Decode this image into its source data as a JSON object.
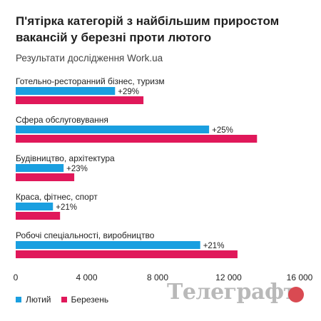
{
  "header": {
    "title": "П'ятірка категорій з найбільшим приростом вакансій у березні проти лютого",
    "subtitle": "Результати дослідження Work.ua"
  },
  "legend": [
    {
      "label": "Лютий",
      "color": "#1a9fe0"
    },
    {
      "label": "Березень",
      "color": "#e0185a"
    }
  ],
  "watermark": {
    "text": "Телеграфъ"
  },
  "chart_data": {
    "type": "bar",
    "orientation": "horizontal",
    "categories": [
      "Готельно-ресторанний бізнес, туризм",
      "Сфера обслуговування",
      "Будівництво, архітектура",
      "Краса, фітнес, спорт",
      "Робочі спеціальності, виробництво"
    ],
    "series": [
      {
        "name": "Лютий",
        "color": "#1a9fe0",
        "values": [
          5600,
          10900,
          2700,
          2100,
          10400
        ]
      },
      {
        "name": "Березень",
        "color": "#e0185a",
        "values": [
          7200,
          13600,
          3300,
          2500,
          12500
        ]
      }
    ],
    "data_labels": [
      "+29%",
      "+25%",
      "+23%",
      "+21%",
      "+21%"
    ],
    "xlim": [
      0,
      16000
    ],
    "xticks": [
      0,
      4000,
      8000,
      12000,
      16000
    ],
    "xtick_labels": [
      "0",
      "4 000",
      "8 000",
      "12 000",
      "16 000"
    ],
    "grid": false,
    "legend_position": "bottom-left"
  }
}
